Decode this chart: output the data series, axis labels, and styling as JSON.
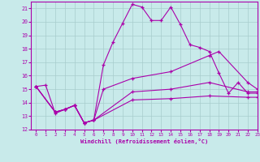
{
  "xlabel": "Windchill (Refroidissement éolien,°C)",
  "xlim": [
    -0.5,
    23
  ],
  "ylim": [
    12,
    21.5
  ],
  "yticks": [
    12,
    13,
    14,
    15,
    16,
    17,
    18,
    19,
    20,
    21
  ],
  "xticks": [
    0,
    1,
    2,
    3,
    4,
    5,
    6,
    7,
    8,
    9,
    10,
    11,
    12,
    13,
    14,
    15,
    16,
    17,
    18,
    19,
    20,
    21,
    22,
    23
  ],
  "bg_color": "#c8eaea",
  "grid_color": "#a8cccc",
  "line_color": "#aa00aa",
  "line1_x": [
    0,
    1,
    2,
    3,
    4,
    5,
    6,
    7,
    8,
    9,
    10,
    11,
    12,
    13,
    14,
    15,
    16,
    17,
    18,
    19,
    20,
    21,
    22,
    23
  ],
  "line1_y": [
    15.2,
    15.3,
    13.2,
    13.5,
    13.8,
    12.5,
    12.7,
    16.8,
    18.5,
    19.9,
    21.3,
    21.1,
    20.1,
    20.1,
    21.1,
    19.8,
    18.3,
    18.1,
    17.8,
    16.2,
    14.7,
    15.5,
    14.7,
    14.7
  ],
  "line2_x": [
    0,
    2,
    3,
    4,
    5,
    6,
    7,
    10,
    14,
    18,
    19,
    22,
    23
  ],
  "line2_y": [
    15.2,
    13.3,
    13.5,
    13.8,
    12.5,
    12.7,
    15.0,
    15.8,
    16.3,
    17.5,
    17.8,
    15.5,
    15.0
  ],
  "line3_x": [
    0,
    2,
    3,
    4,
    5,
    6,
    10,
    14,
    18,
    22,
    23
  ],
  "line3_y": [
    15.2,
    13.3,
    13.5,
    13.8,
    12.5,
    12.7,
    14.8,
    15.0,
    15.5,
    14.8,
    14.8
  ],
  "line4_x": [
    0,
    2,
    3,
    4,
    5,
    6,
    10,
    14,
    18,
    22,
    23
  ],
  "line4_y": [
    15.2,
    13.3,
    13.5,
    13.8,
    12.5,
    12.7,
    14.2,
    14.3,
    14.5,
    14.4,
    14.4
  ]
}
